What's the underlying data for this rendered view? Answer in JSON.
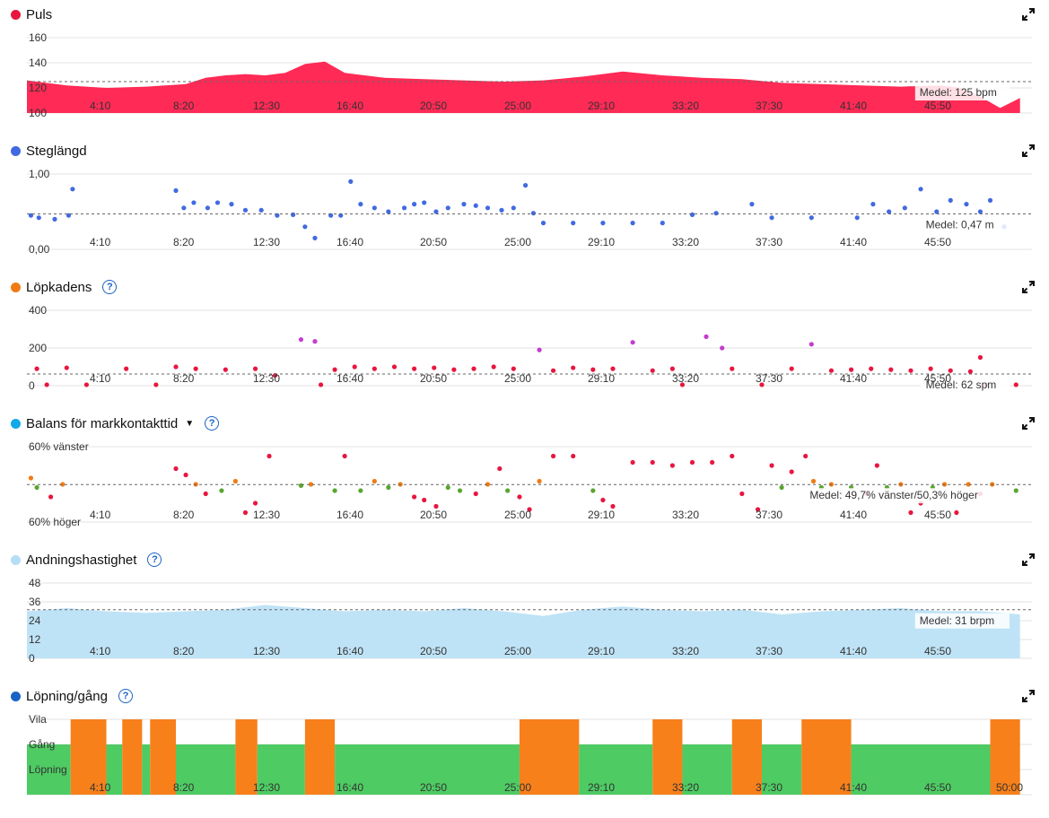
{
  "x_ticks": [
    "4:10",
    "8:20",
    "12:30",
    "16:40",
    "20:50",
    "25:00",
    "29:10",
    "33:20",
    "37:30",
    "41:40",
    "45:50"
  ],
  "x_ticks_last": [
    "4:10",
    "8:20",
    "12:30",
    "16:40",
    "20:50",
    "25:00",
    "29:10",
    "33:20",
    "37:30",
    "41:40",
    "45:50",
    "50:00"
  ],
  "panels": [
    {
      "id": "puls",
      "title": "Puls",
      "dot_color": "#e8163f",
      "help": false,
      "caret": false,
      "y_labels": [
        "160",
        "140",
        "120",
        "100"
      ],
      "avg_label": "Medel: 125 bpm",
      "fill": "#ff2a55"
    },
    {
      "id": "steg",
      "title": "Steglängd",
      "dot_color": "#4169e1",
      "help": false,
      "caret": false,
      "y_labels": [
        "1,00",
        "0,00"
      ],
      "avg_label": "Medel: 0,47 m",
      "fill": "#4169e1"
    },
    {
      "id": "kad",
      "title": "Löpkadens",
      "dot_color": "#f07b14",
      "help": true,
      "caret": false,
      "y_labels": [
        "400",
        "200",
        "0"
      ],
      "avg_label": "Medel: 62 spm",
      "fill": "#e8163f"
    },
    {
      "id": "bal",
      "title": "Balans för markkontakttid",
      "dot_color": "#12a9e8",
      "help": true,
      "caret": true,
      "y_labels": [
        "60% vänster",
        "60% höger"
      ],
      "avg_label": "Medel: 49,7% vänster/50,3% höger",
      "fill": "#e8163f"
    },
    {
      "id": "and",
      "title": "Andningshastighet",
      "dot_color": "#b4def5",
      "help": true,
      "caret": false,
      "y_labels": [
        "48",
        "36",
        "24",
        "12",
        "0"
      ],
      "avg_label": "Medel: 31 brpm",
      "fill": "#bfe3f6"
    },
    {
      "id": "lop",
      "title": "Löpning/gång",
      "dot_color": "#1a63c4",
      "help": true,
      "caret": false,
      "y_labels": [
        "Vila",
        "Gång",
        "Löpning"
      ],
      "avg_label": "",
      "fill": "#4ecb63"
    }
  ],
  "chart_data": [
    {
      "type": "area",
      "title": "Puls",
      "ylabel": "",
      "ylim": [
        100,
        160
      ],
      "average": 125,
      "unit": "bpm",
      "x_minutes": [
        0,
        2,
        4,
        6,
        8,
        9,
        10,
        11,
        12,
        13,
        14,
        15,
        16,
        18,
        20,
        22,
        24,
        26,
        28,
        30,
        32,
        34,
        36,
        38,
        40,
        42,
        44,
        46,
        47,
        48,
        49,
        50
      ],
      "values": [
        126,
        122,
        120,
        121,
        123,
        128,
        130,
        131,
        130,
        132,
        139,
        141,
        132,
        128,
        127,
        126,
        125,
        126,
        129,
        133,
        130,
        128,
        127,
        124,
        123,
        122,
        121,
        122,
        120,
        113,
        104,
        112
      ]
    },
    {
      "type": "scatter",
      "title": "Steglängd",
      "ylabel": "",
      "ylim": [
        0,
        1
      ],
      "average": 0.47,
      "unit": "m",
      "points": [
        [
          0.2,
          0.45
        ],
        [
          0.6,
          0.42
        ],
        [
          1.4,
          0.4
        ],
        [
          2.1,
          0.45
        ],
        [
          2.3,
          0.8
        ],
        [
          7.5,
          0.78
        ],
        [
          7.9,
          0.55
        ],
        [
          8.4,
          0.62
        ],
        [
          9.1,
          0.55
        ],
        [
          9.6,
          0.62
        ],
        [
          10.3,
          0.6
        ],
        [
          11.0,
          0.52
        ],
        [
          11.8,
          0.52
        ],
        [
          12.6,
          0.45
        ],
        [
          13.4,
          0.46
        ],
        [
          14.0,
          0.3
        ],
        [
          14.5,
          0.15
        ],
        [
          15.3,
          0.45
        ],
        [
          15.8,
          0.45
        ],
        [
          16.3,
          0.9
        ],
        [
          16.8,
          0.6
        ],
        [
          17.5,
          0.55
        ],
        [
          18.2,
          0.5
        ],
        [
          19.0,
          0.55
        ],
        [
          19.5,
          0.6
        ],
        [
          20.0,
          0.62
        ],
        [
          20.6,
          0.5
        ],
        [
          21.2,
          0.55
        ],
        [
          22.0,
          0.6
        ],
        [
          22.6,
          0.58
        ],
        [
          23.2,
          0.55
        ],
        [
          23.9,
          0.52
        ],
        [
          24.5,
          0.55
        ],
        [
          25.1,
          0.85
        ],
        [
          25.5,
          0.48
        ],
        [
          26.0,
          0.35
        ],
        [
          27.5,
          0.35
        ],
        [
          29.0,
          0.35
        ],
        [
          30.5,
          0.35
        ],
        [
          32.0,
          0.35
        ],
        [
          33.5,
          0.46
        ],
        [
          34.7,
          0.48
        ],
        [
          36.5,
          0.6
        ],
        [
          37.5,
          0.42
        ],
        [
          39.5,
          0.42
        ],
        [
          41.8,
          0.42
        ],
        [
          42.6,
          0.6
        ],
        [
          43.4,
          0.5
        ],
        [
          44.2,
          0.55
        ],
        [
          45.0,
          0.8
        ],
        [
          45.8,
          0.5
        ],
        [
          46.5,
          0.65
        ],
        [
          47.3,
          0.6
        ],
        [
          48.0,
          0.5
        ],
        [
          48.5,
          0.65
        ],
        [
          49.2,
          0.3
        ]
      ]
    },
    {
      "type": "scatter",
      "title": "Löpkadens",
      "ylabel": "",
      "ylim": [
        0,
        400
      ],
      "average": 62,
      "unit": "spm",
      "points": [
        [
          0.5,
          90
        ],
        [
          1.0,
          5
        ],
        [
          2.0,
          95
        ],
        [
          3.0,
          5
        ],
        [
          5.0,
          90
        ],
        [
          6.5,
          5
        ],
        [
          7.5,
          100
        ],
        [
          8.5,
          90
        ],
        [
          10.0,
          85
        ],
        [
          11.5,
          90
        ],
        [
          12.5,
          55
        ],
        [
          13.8,
          245
        ],
        [
          14.5,
          235
        ],
        [
          14.8,
          5
        ],
        [
          15.5,
          85
        ],
        [
          16.5,
          100
        ],
        [
          17.5,
          90
        ],
        [
          18.5,
          100
        ],
        [
          19.5,
          90
        ],
        [
          20.5,
          95
        ],
        [
          21.5,
          85
        ],
        [
          22.5,
          90
        ],
        [
          23.5,
          100
        ],
        [
          24.5,
          90
        ],
        [
          25.8,
          190
        ],
        [
          26.5,
          80
        ],
        [
          27.5,
          95
        ],
        [
          28.5,
          85
        ],
        [
          29.5,
          90
        ],
        [
          30.5,
          230
        ],
        [
          31.5,
          80
        ],
        [
          32.5,
          90
        ],
        [
          33.0,
          5
        ],
        [
          34.2,
          260
        ],
        [
          35.0,
          200
        ],
        [
          35.5,
          90
        ],
        [
          37.0,
          5
        ],
        [
          38.5,
          90
        ],
        [
          39.5,
          220
        ],
        [
          40.5,
          80
        ],
        [
          41.5,
          85
        ],
        [
          42.5,
          90
        ],
        [
          43.5,
          85
        ],
        [
          44.5,
          80
        ],
        [
          45.5,
          90
        ],
        [
          46.5,
          80
        ],
        [
          47.5,
          75
        ],
        [
          48.0,
          150
        ],
        [
          48.3,
          5
        ],
        [
          49.8,
          5
        ]
      ]
    },
    {
      "type": "scatter",
      "title": "Balans för markkontakttid",
      "ylabel": "",
      "ylim": [
        -60,
        60
      ],
      "average": -0.3,
      "unit": "%",
      "points": [
        [
          0.2,
          10
        ],
        [
          0.5,
          -5
        ],
        [
          1.2,
          -20
        ],
        [
          1.8,
          0
        ],
        [
          7.5,
          25
        ],
        [
          8.0,
          15
        ],
        [
          8.5,
          0
        ],
        [
          9.0,
          -15
        ],
        [
          9.8,
          -10
        ],
        [
          10.5,
          5
        ],
        [
          11.0,
          -45
        ],
        [
          11.5,
          -30
        ],
        [
          12.2,
          45
        ],
        [
          13.8,
          -2
        ],
        [
          14.3,
          0
        ],
        [
          15.5,
          -10
        ],
        [
          16.0,
          45
        ],
        [
          16.8,
          -10
        ],
        [
          17.5,
          5
        ],
        [
          18.2,
          -5
        ],
        [
          18.8,
          0
        ],
        [
          19.5,
          -20
        ],
        [
          20.0,
          -25
        ],
        [
          20.6,
          -35
        ],
        [
          21.2,
          -5
        ],
        [
          21.8,
          -10
        ],
        [
          22.6,
          -15
        ],
        [
          23.2,
          0
        ],
        [
          23.8,
          25
        ],
        [
          24.2,
          -10
        ],
        [
          24.8,
          -20
        ],
        [
          25.3,
          -40
        ],
        [
          25.8,
          5
        ],
        [
          26.5,
          45
        ],
        [
          27.5,
          45
        ],
        [
          28.5,
          -10
        ],
        [
          29.0,
          -25
        ],
        [
          29.5,
          -35
        ],
        [
          30.5,
          35
        ],
        [
          31.5,
          35
        ],
        [
          32.5,
          30
        ],
        [
          33.5,
          35
        ],
        [
          34.5,
          35
        ],
        [
          35.5,
          45
        ],
        [
          36.0,
          -15
        ],
        [
          36.8,
          -40
        ],
        [
          37.5,
          30
        ],
        [
          38.0,
          -5
        ],
        [
          38.5,
          20
        ],
        [
          39.2,
          45
        ],
        [
          39.6,
          5
        ],
        [
          40.0,
          -5
        ],
        [
          40.5,
          0
        ],
        [
          41.5,
          -5
        ],
        [
          42.3,
          -15
        ],
        [
          42.8,
          30
        ],
        [
          43.3,
          -5
        ],
        [
          44.0,
          0
        ],
        [
          44.5,
          -45
        ],
        [
          45.0,
          -30
        ],
        [
          45.6,
          -5
        ],
        [
          46.2,
          0
        ],
        [
          46.8,
          -45
        ],
        [
          47.4,
          0
        ],
        [
          48.0,
          -15
        ],
        [
          48.6,
          0
        ],
        [
          49.8,
          -10
        ]
      ]
    },
    {
      "type": "area",
      "title": "Andningshastighet",
      "ylabel": "",
      "ylim": [
        0,
        48
      ],
      "average": 31,
      "unit": "brpm",
      "x_minutes": [
        0,
        2,
        4,
        6,
        8,
        10,
        12,
        14,
        16,
        18,
        20,
        22,
        24,
        26,
        28,
        30,
        32,
        34,
        36,
        38,
        40,
        42,
        44,
        46,
        48,
        50
      ],
      "values": [
        30,
        32,
        30,
        29,
        30,
        31,
        34,
        32,
        30,
        31,
        30,
        32,
        30,
        27,
        31,
        33,
        31,
        30,
        31,
        28,
        30,
        31,
        32,
        30,
        30,
        28
      ]
    },
    {
      "type": "bar",
      "title": "Löpning/gång",
      "ylabel": "",
      "categories": [
        "Vila",
        "Gång",
        "Löpning"
      ],
      "segments": [
        {
          "start": 0,
          "end": 2.2,
          "state": "Gång"
        },
        {
          "start": 2.2,
          "end": 4.0,
          "state": "Vila"
        },
        {
          "start": 4.0,
          "end": 4.8,
          "state": "Gång"
        },
        {
          "start": 4.8,
          "end": 5.8,
          "state": "Vila"
        },
        {
          "start": 5.8,
          "end": 6.2,
          "state": "Gång"
        },
        {
          "start": 6.2,
          "end": 7.5,
          "state": "Vila"
        },
        {
          "start": 7.5,
          "end": 10.5,
          "state": "Gång"
        },
        {
          "start": 10.5,
          "end": 11.6,
          "state": "Vila"
        },
        {
          "start": 11.6,
          "end": 14.0,
          "state": "Gång"
        },
        {
          "start": 14.0,
          "end": 15.5,
          "state": "Vila"
        },
        {
          "start": 15.5,
          "end": 24.8,
          "state": "Gång"
        },
        {
          "start": 24.8,
          "end": 27.8,
          "state": "Vila"
        },
        {
          "start": 27.8,
          "end": 31.5,
          "state": "Gång"
        },
        {
          "start": 31.5,
          "end": 33.0,
          "state": "Vila"
        },
        {
          "start": 33.0,
          "end": 35.5,
          "state": "Gång"
        },
        {
          "start": 35.5,
          "end": 37.0,
          "state": "Vila"
        },
        {
          "start": 37.0,
          "end": 39.0,
          "state": "Gång"
        },
        {
          "start": 39.0,
          "end": 41.5,
          "state": "Vila"
        },
        {
          "start": 41.5,
          "end": 48.5,
          "state": "Gång"
        },
        {
          "start": 48.5,
          "end": 50.0,
          "state": "Vila"
        }
      ]
    }
  ]
}
